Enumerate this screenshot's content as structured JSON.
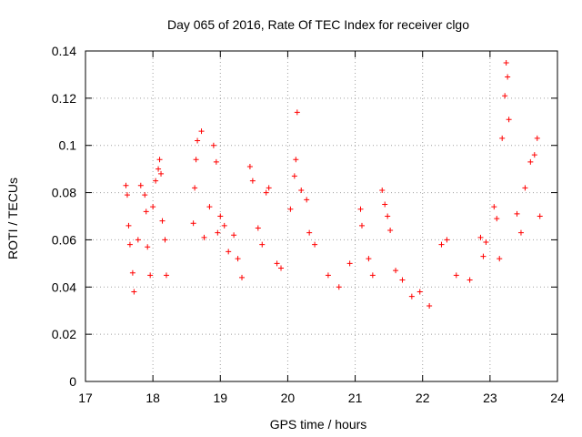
{
  "chart_data": {
    "type": "scatter",
    "title": "Day 065 of 2016, Rate Of TEC Index for receiver clgo",
    "xlabel": "GPS time / hours",
    "ylabel": "ROTI / TECUs",
    "xlim": [
      17,
      24
    ],
    "ylim": [
      0,
      0.14
    ],
    "xticks": [
      17,
      18,
      19,
      20,
      21,
      22,
      23,
      24
    ],
    "xtick_labels": [
      "17",
      "18",
      "19",
      "20",
      "21",
      "22",
      "23",
      "24"
    ],
    "yticks": [
      0,
      0.02,
      0.04,
      0.06,
      0.08,
      0.1,
      0.12,
      0.14
    ],
    "ytick_labels": [
      "0",
      "0.02",
      "0.04",
      "0.06",
      "0.08",
      "0.1",
      "0.12",
      "0.14"
    ],
    "grid": true,
    "marker": "+",
    "color": "#ff0000",
    "series": [
      {
        "name": "ROTI",
        "x": [
          17.6,
          17.62,
          17.64,
          17.66,
          17.7,
          17.72,
          17.78,
          17.82,
          17.88,
          17.9,
          17.92,
          17.96,
          18.0,
          18.04,
          18.08,
          18.1,
          18.12,
          18.14,
          18.18,
          18.2,
          18.6,
          18.62,
          18.64,
          18.66,
          18.72,
          18.76,
          18.84,
          18.9,
          18.94,
          18.96,
          19.0,
          19.06,
          19.12,
          19.2,
          19.26,
          19.32,
          19.44,
          19.48,
          19.56,
          19.62,
          19.68,
          19.72,
          19.84,
          19.9,
          20.04,
          20.1,
          20.12,
          20.14,
          20.2,
          20.28,
          20.32,
          20.4,
          20.6,
          20.76,
          20.92,
          21.08,
          21.1,
          21.2,
          21.26,
          21.4,
          21.44,
          21.48,
          21.52,
          21.6,
          21.7,
          21.84,
          21.96,
          22.1,
          22.28,
          22.36,
          22.5,
          22.7,
          22.86,
          22.9,
          22.94,
          23.06,
          23.1,
          23.14,
          23.18,
          23.22,
          23.24,
          23.26,
          23.28,
          23.4,
          23.46,
          23.52,
          23.6,
          23.66,
          23.7,
          23.74
        ],
        "y": [
          0.083,
          0.079,
          0.066,
          0.058,
          0.046,
          0.038,
          0.06,
          0.083,
          0.079,
          0.072,
          0.057,
          0.045,
          0.074,
          0.085,
          0.09,
          0.094,
          0.088,
          0.068,
          0.06,
          0.045,
          0.067,
          0.082,
          0.094,
          0.102,
          0.106,
          0.061,
          0.074,
          0.1,
          0.093,
          0.063,
          0.07,
          0.066,
          0.055,
          0.062,
          0.052,
          0.044,
          0.091,
          0.085,
          0.065,
          0.058,
          0.08,
          0.082,
          0.05,
          0.048,
          0.073,
          0.087,
          0.094,
          0.114,
          0.081,
          0.077,
          0.063,
          0.058,
          0.045,
          0.04,
          0.05,
          0.073,
          0.066,
          0.052,
          0.045,
          0.081,
          0.075,
          0.07,
          0.064,
          0.047,
          0.043,
          0.036,
          0.038,
          0.032,
          0.058,
          0.06,
          0.045,
          0.043,
          0.061,
          0.053,
          0.059,
          0.074,
          0.069,
          0.052,
          0.103,
          0.121,
          0.135,
          0.129,
          0.111,
          0.071,
          0.063,
          0.082,
          0.093,
          0.096,
          0.103,
          0.07
        ]
      }
    ]
  }
}
